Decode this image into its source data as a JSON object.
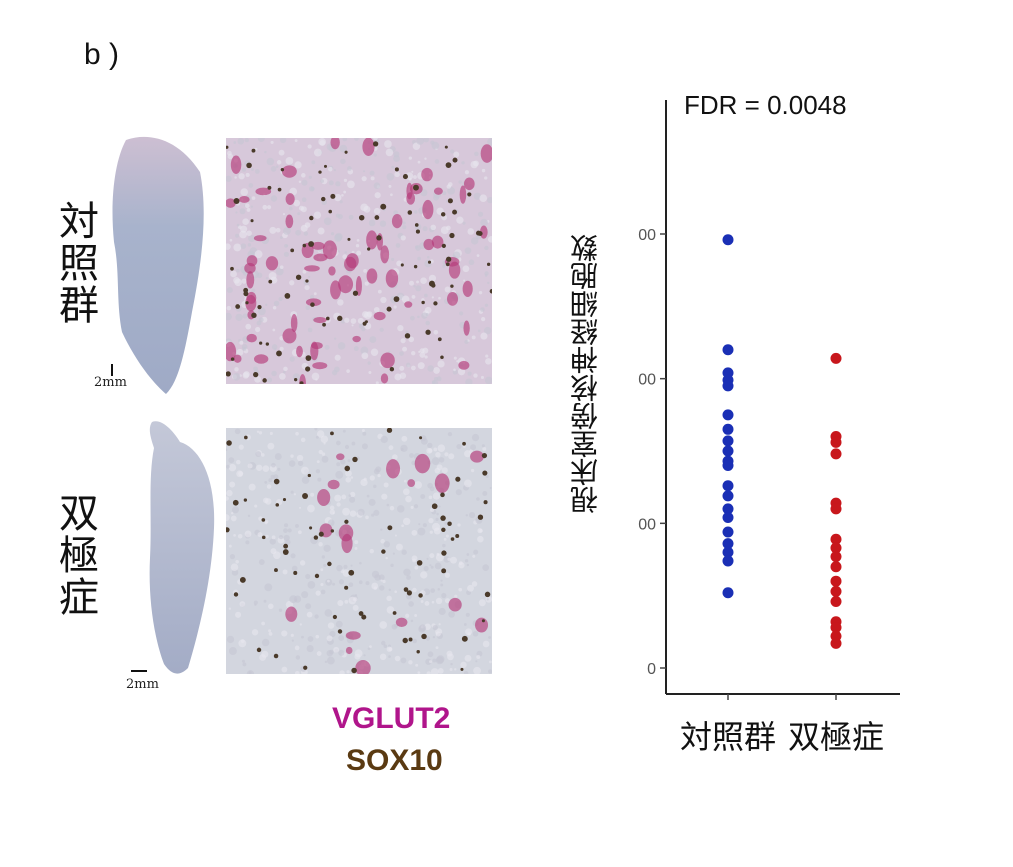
{
  "panel_label": "b )",
  "rows": [
    {
      "label": "対照群",
      "scalebar": "2mm"
    },
    {
      "label": "双極症",
      "scalebar": "2mm"
    }
  ],
  "stain_legend": {
    "vglut2": "VGLUT2",
    "sox10": "SOX10"
  },
  "colors": {
    "control": "#1a2fb5",
    "bipolar": "#c8171c",
    "vglut2": "#b0158b",
    "sox10": "#5a3a12"
  },
  "chart_data": {
    "type": "scatter",
    "annotation": "FDR = 0.0048",
    "ylabel": "視床室傍核神経細胞数",
    "categories": [
      "対照群",
      "双極症"
    ],
    "yticks": [
      "0",
      "00",
      "00",
      "00"
    ],
    "ylim": [
      0,
      3.2
    ],
    "series": [
      {
        "category": "対照群",
        "color": "#1a2fb5",
        "values": [
          2.96,
          2.2,
          2.04,
          1.99,
          1.95,
          1.75,
          1.65,
          1.57,
          1.5,
          1.43,
          1.4,
          1.26,
          1.19,
          1.1,
          1.04,
          0.94,
          0.86,
          0.8,
          0.74,
          0.52
        ]
      },
      {
        "category": "双極症",
        "color": "#c8171c",
        "values": [
          2.14,
          1.6,
          1.56,
          1.48,
          1.14,
          1.1,
          0.89,
          0.83,
          0.77,
          0.7,
          0.6,
          0.53,
          0.46,
          0.32,
          0.28,
          0.22,
          0.17
        ]
      }
    ]
  }
}
